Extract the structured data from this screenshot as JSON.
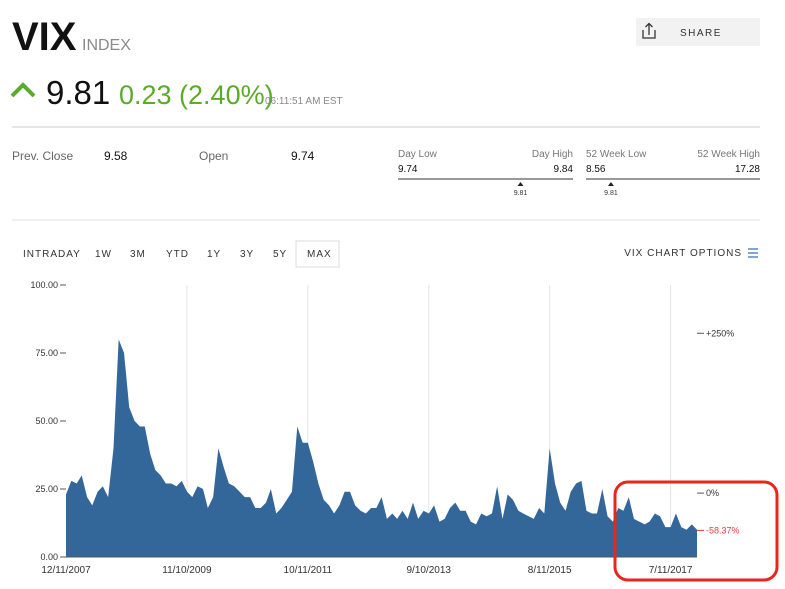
{
  "header": {
    "symbol": "VIX",
    "kind": "INDEX",
    "share": "SHARE"
  },
  "quote": {
    "price": 9.81,
    "change": "0.23 (2.40%)",
    "time": "06:11:51 AM EST"
  },
  "stats": {
    "prev_close_label": "Prev. Close",
    "prev_close": 9.58,
    "open_label": "Open",
    "open": 9.74,
    "day_range": {
      "low_label": "Day Low",
      "high_label": "Day High",
      "low": 9.74,
      "high": 9.84,
      "marker": 9.81
    },
    "week52_range": {
      "low_label": "52 Week Low",
      "high_label": "52 Week High",
      "low": 8.56,
      "high": 17.28,
      "marker": 9.81
    }
  },
  "tabs": [
    "INTRADAY",
    "1W",
    "3M",
    "YTD",
    "1Y",
    "3Y",
    "5Y",
    "MAX"
  ],
  "active_tab": "MAX",
  "chart_options": "VIX CHART OPTIONS",
  "chart_data": {
    "type": "area",
    "x": [
      "12/11/2007",
      "1/11/2008",
      "2/11/2008",
      "3/11/2008",
      "4/11/2008",
      "5/11/2008",
      "6/11/2008",
      "7/11/2008",
      "8/11/2008",
      "9/11/2008",
      "10/11/2008",
      "11/11/2008",
      "12/11/2008",
      "1/11/2009",
      "2/11/2009",
      "3/11/2009",
      "4/11/2009",
      "5/11/2009",
      "6/11/2009",
      "7/11/2009",
      "8/11/2009",
      "9/11/2009",
      "10/11/2009",
      "11/11/2009",
      "12/11/2009",
      "1/11/2010",
      "2/11/2010",
      "3/11/2010",
      "4/11/2010",
      "5/11/2010",
      "6/11/2010",
      "7/11/2010",
      "8/11/2010",
      "9/11/2010",
      "10/11/2010",
      "11/11/2010",
      "12/11/2010",
      "1/11/2011",
      "2/11/2011",
      "3/11/2011",
      "4/11/2011",
      "5/11/2011",
      "6/11/2011",
      "7/11/2011",
      "8/11/2011",
      "9/11/2011",
      "10/11/2011",
      "11/11/2011",
      "12/11/2011",
      "1/11/2012",
      "2/11/2012",
      "3/11/2012",
      "4/11/2012",
      "5/11/2012",
      "6/11/2012",
      "7/11/2012",
      "8/11/2012",
      "9/11/2012",
      "10/11/2012",
      "11/11/2012",
      "12/11/2012",
      "1/11/2013",
      "2/11/2013",
      "3/11/2013",
      "4/11/2013",
      "5/11/2013",
      "6/11/2013",
      "7/11/2013",
      "8/11/2013",
      "9/11/2013",
      "10/11/2013",
      "11/11/2013",
      "12/11/2013",
      "1/11/2014",
      "2/11/2014",
      "3/11/2014",
      "4/11/2014",
      "5/11/2014",
      "6/11/2014",
      "7/11/2014",
      "8/11/2014",
      "9/11/2014",
      "10/11/2014",
      "11/11/2014",
      "12/11/2014",
      "1/11/2015",
      "2/11/2015",
      "3/11/2015",
      "4/11/2015",
      "5/11/2015",
      "6/11/2015",
      "7/11/2015",
      "8/11/2015",
      "9/11/2015",
      "10/11/2015",
      "11/11/2015",
      "12/11/2015",
      "1/11/2016",
      "2/11/2016",
      "3/11/2016",
      "4/11/2016",
      "5/11/2016",
      "6/11/2016",
      "7/11/2016",
      "8/11/2016",
      "9/11/2016",
      "10/11/2016",
      "11/11/2016",
      "12/11/2016",
      "1/11/2017",
      "2/11/2017",
      "3/11/2017",
      "4/11/2017",
      "5/11/2017",
      "6/11/2017",
      "7/11/2017",
      "8/11/2017",
      "9/11/2017",
      "10/11/2017",
      "11/11/2017",
      "12/11/2017"
    ],
    "series": [
      {
        "name": "VIX",
        "color": "#336699",
        "values": [
          23,
          28,
          27,
          30,
          22,
          19,
          24,
          26,
          22,
          40,
          80,
          75,
          55,
          50,
          48,
          48,
          38,
          32,
          30,
          27,
          27,
          26,
          28,
          24,
          22,
          26,
          25,
          18,
          22,
          40,
          33,
          27,
          26,
          24,
          22,
          22,
          18,
          18,
          20,
          25,
          16,
          18,
          21,
          24,
          48,
          42,
          42,
          35,
          27,
          21,
          19,
          16,
          19,
          24,
          24,
          19,
          17,
          16,
          18,
          18,
          22,
          14,
          16,
          14,
          17,
          14,
          20,
          14,
          17,
          16,
          19,
          13,
          14,
          18,
          20,
          17,
          17,
          13,
          12,
          16,
          15,
          16,
          26,
          14,
          23,
          21,
          17,
          16,
          15,
          14,
          18,
          16,
          40,
          27,
          20,
          17,
          24,
          27,
          28,
          17,
          16,
          16,
          25,
          15,
          13,
          18,
          17,
          22,
          14,
          13,
          12,
          13,
          16,
          15,
          11,
          11,
          16,
          11,
          10,
          12,
          10
        ]
      }
    ],
    "xlim": [
      "12/11/2007",
      "12/11/2017"
    ],
    "xticks": [
      "12/11/2007",
      "11/10/2009",
      "10/11/2011",
      "9/10/2013",
      "8/11/2015",
      "7/11/2017"
    ],
    "ylim": [
      0,
      100
    ],
    "yticks": [
      {
        "value": 0,
        "label": "0.00"
      },
      {
        "value": 25,
        "label": "25.00"
      },
      {
        "value": 50,
        "label": "50.00"
      },
      {
        "value": 75,
        "label": "75.00"
      },
      {
        "value": 100,
        "label": "100.00"
      }
    ],
    "y2lim": [
      -100,
      325.5
    ],
    "y2ticks": [
      {
        "value": 250,
        "label": "+250%"
      },
      {
        "value": 0,
        "label": "0%"
      }
    ],
    "current_change": {
      "value": -58.37,
      "label": "-58.37%",
      "color": "#e8383d"
    }
  }
}
